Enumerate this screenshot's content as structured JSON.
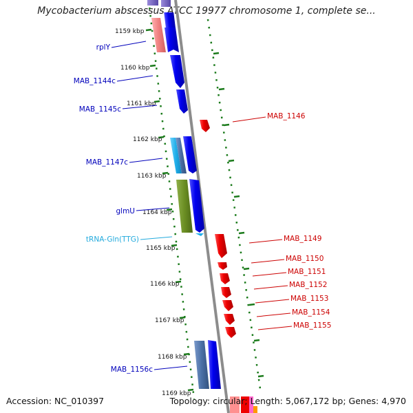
{
  "title": "Mycobacterium abscessus ATCC 19977 chromosome 1, complete se...",
  "footer": {
    "accession": "Accession: NC_010397",
    "summary": "Topology: circular; Length: 5,067,172 bp; Genes: 4,970"
  },
  "colors": {
    "backbone": "#8c8c8c",
    "tick": "#1a7a1a",
    "forward_label": "#0000bb",
    "reverse_label": "#cc0000",
    "trna_label": "#22aadd",
    "forward_gene": "#0000ee",
    "reverse_gene": "#ee0000",
    "glmU": "#6b8e23",
    "light_blue": "#1faee9",
    "steel_blue": "#4a6fa5",
    "pink": "#f08080"
  },
  "scale_labels": [
    {
      "kbp": 1159,
      "text": "1159 kbp"
    },
    {
      "kbp": 1160,
      "text": "1160 kbp"
    },
    {
      "kbp": 1161,
      "text": "1161 kbp"
    },
    {
      "kbp": 1162,
      "text": "1162 kbp"
    },
    {
      "kbp": 1163,
      "text": "1163 kbp"
    },
    {
      "kbp": 1164,
      "text": "1164 kbp"
    },
    {
      "kbp": 1165,
      "text": "1165 kbp"
    },
    {
      "kbp": 1166,
      "text": "1166 kbp"
    },
    {
      "kbp": 1167,
      "text": "1167 kbp"
    },
    {
      "kbp": 1168,
      "text": "1168 kbp"
    },
    {
      "kbp": 1169,
      "text": "1169 kbp"
    }
  ],
  "forward_labels": [
    {
      "name": "rplY",
      "type": "forward"
    },
    {
      "name": "MAB_1144c",
      "type": "forward"
    },
    {
      "name": "MAB_1145c",
      "type": "forward"
    },
    {
      "name": "MAB_1147c",
      "type": "forward"
    },
    {
      "name": "glmU",
      "type": "forward"
    },
    {
      "name": "tRNA-Gln(TTG)",
      "type": "trna"
    },
    {
      "name": "MAB_1156c",
      "type": "forward"
    }
  ],
  "reverse_labels": [
    {
      "name": "MAB_1146"
    },
    {
      "name": "MAB_1149"
    },
    {
      "name": "MAB_1150"
    },
    {
      "name": "MAB_1151"
    },
    {
      "name": "MAB_1152"
    },
    {
      "name": "MAB_1153"
    },
    {
      "name": "MAB_1154"
    },
    {
      "name": "MAB_1155"
    }
  ]
}
